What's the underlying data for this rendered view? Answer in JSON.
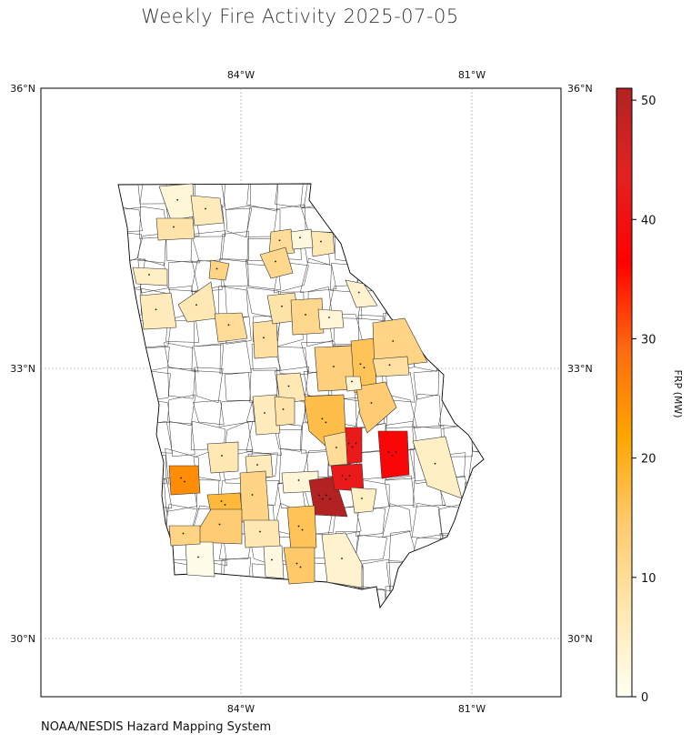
{
  "title": "Weekly Fire Activity 2025-07-05",
  "source": "NOAA/NESDIS Hazard Mapping System",
  "colorbar": {
    "label": "FRP (MW)",
    "ticks": [
      "0",
      "10",
      "20",
      "30",
      "40",
      "50"
    ],
    "max": 51,
    "colors": [
      "#fffff2",
      "#ffe7b0",
      "#ffca6e",
      "#ffa500",
      "#ff6a10",
      "#ff0000",
      "#e32222",
      "#b22222"
    ]
  },
  "axes": {
    "lon_labels": [
      "84°W",
      "81°W"
    ],
    "lat_labels": [
      "36°N",
      "33°N",
      "30°N"
    ]
  },
  "regions": [
    {
      "frp": 3
    },
    {
      "frp": 8
    },
    {
      "frp": 6
    },
    {
      "frp": 5
    },
    {
      "frp": 10
    },
    {
      "frp": 7
    },
    {
      "frp": 11
    },
    {
      "frp": 12
    },
    {
      "frp": 6
    },
    {
      "frp": 2
    },
    {
      "frp": 7
    },
    {
      "frp": 10
    },
    {
      "frp": 9
    },
    {
      "frp": 8
    },
    {
      "frp": 11
    },
    {
      "frp": 4
    },
    {
      "frp": 3
    },
    {
      "frp": 13
    },
    {
      "frp": 16
    },
    {
      "frp": 12
    },
    {
      "frp": 9
    },
    {
      "frp": 14
    },
    {
      "frp": 17
    },
    {
      "frp": 10
    },
    {
      "frp": 6
    },
    {
      "frp": 7
    },
    {
      "frp": 38
    },
    {
      "frp": 42
    },
    {
      "frp": 5
    },
    {
      "frp": 7
    },
    {
      "frp": 3
    },
    {
      "frp": 6
    },
    {
      "frp": 51
    },
    {
      "frp": 42
    },
    {
      "frp": 12
    },
    {
      "frp": 18
    },
    {
      "frp": 25
    },
    {
      "frp": 14
    },
    {
      "frp": 5
    },
    {
      "frp": 1
    },
    {
      "frp": 2
    },
    {
      "frp": 7
    },
    {
      "frp": 16
    },
    {
      "frp": 15
    },
    {
      "frp": 4
    },
    {
      "frp": 12
    },
    {
      "frp": 8
    },
    {
      "frp": 3
    }
  ]
}
